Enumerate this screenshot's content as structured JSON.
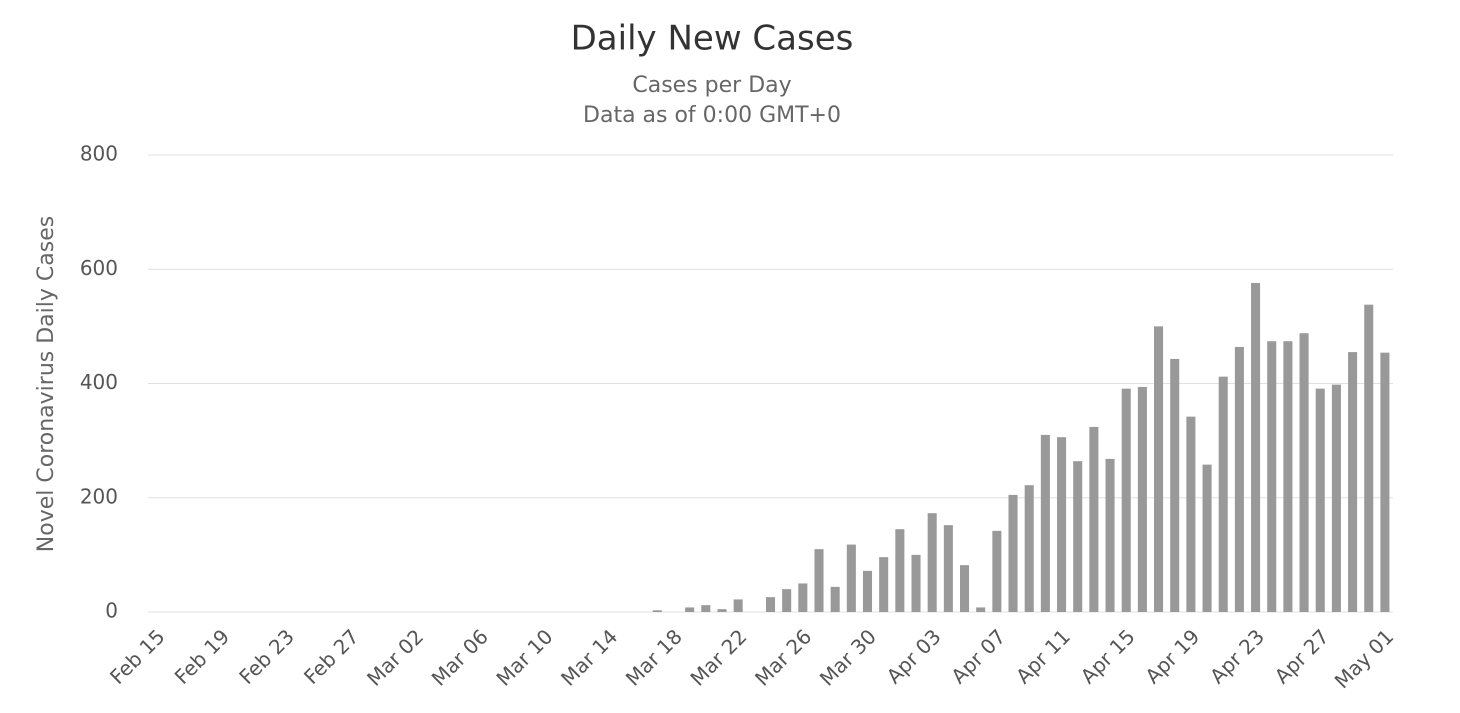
{
  "chart_data": {
    "type": "bar",
    "title": "Daily New Cases",
    "subtitle": [
      "Cases per Day",
      "Data as of 0:00 GMT+0"
    ],
    "y_label": "Novel Coronavirus Daily Cases",
    "categories": [
      "Feb 15",
      null,
      null,
      null,
      "Feb 19",
      null,
      null,
      null,
      "Feb 23",
      null,
      null,
      null,
      "Feb 27",
      null,
      null,
      null,
      "Mar 02",
      null,
      null,
      null,
      "Mar 06",
      null,
      null,
      null,
      "Mar 10",
      null,
      null,
      null,
      "Mar 14",
      null,
      null,
      null,
      "Mar 18",
      null,
      null,
      null,
      "Mar 22",
      null,
      null,
      null,
      "Mar 26",
      null,
      null,
      null,
      "Mar 30",
      null,
      null,
      null,
      "Apr 03",
      null,
      null,
      null,
      "Apr 07",
      null,
      null,
      null,
      "Apr 11",
      null,
      null,
      null,
      "Apr 15",
      null,
      null,
      null,
      "Apr 19",
      null,
      null,
      null,
      "Apr 23",
      null,
      null,
      null,
      "Apr 27",
      null,
      null,
      null,
      "May 01"
    ],
    "values": [
      0,
      0,
      0,
      0,
      0,
      0,
      0,
      0,
      0,
      0,
      0,
      0,
      0,
      0,
      0,
      0,
      0,
      0,
      0,
      0,
      0,
      0,
      0,
      0,
      0,
      0,
      0,
      0,
      0,
      0,
      0,
      3,
      0,
      8,
      12,
      5,
      22,
      0,
      26,
      40,
      50,
      110,
      44,
      118,
      72,
      96,
      145,
      100,
      173,
      152,
      82,
      8,
      142,
      205,
      222,
      310,
      306,
      264,
      324,
      268,
      391,
      394,
      500,
      443,
      342,
      258,
      412,
      464,
      576,
      474,
      474,
      488,
      391,
      398,
      455,
      538,
      454
    ],
    "color": "#999999",
    "ylim": [
      0,
      800
    ],
    "yticks": [
      0,
      200,
      400,
      600,
      800
    ],
    "grid": true
  }
}
